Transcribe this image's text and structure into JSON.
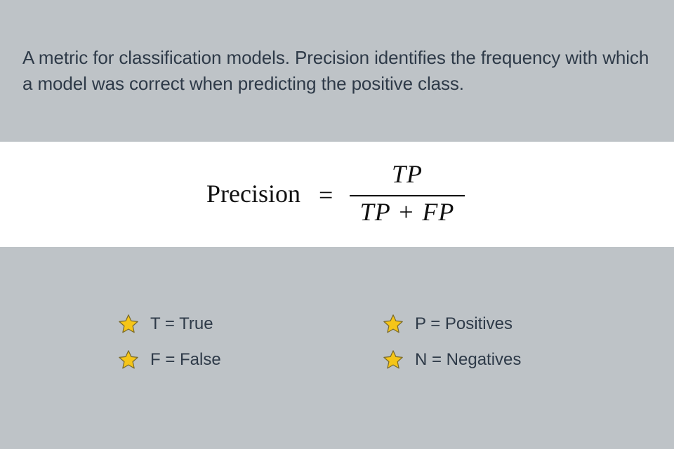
{
  "description": "A metric for classification models. Precision identifies the frequency with which a model was correct when predicting the positive class.",
  "formula": {
    "lhs": "Precision",
    "equals": "=",
    "numerator": "TP",
    "denominator": "TP + FP"
  },
  "legend": [
    {
      "icon": "star-icon",
      "label": "T = True"
    },
    {
      "icon": "star-icon",
      "label": "F = False"
    },
    {
      "icon": "star-icon",
      "label": "P = Positives"
    },
    {
      "icon": "star-icon",
      "label": "N = Negatives"
    }
  ],
  "colors": {
    "background": "#bec3c7",
    "formula_background": "#ffffff",
    "text": "#2e3a48",
    "star_fill": "#f5c518",
    "star_stroke": "#7a6a2a"
  }
}
